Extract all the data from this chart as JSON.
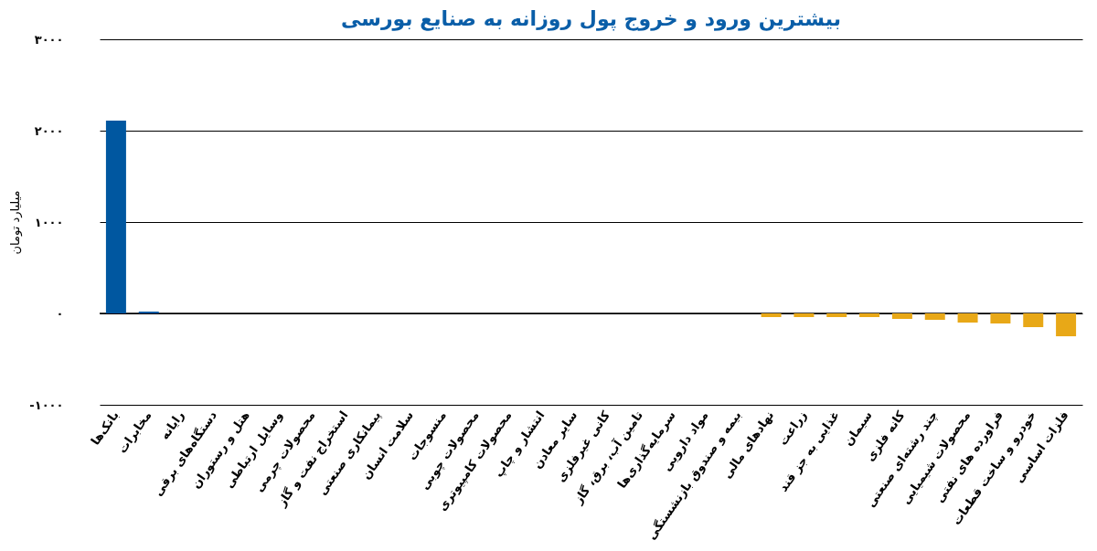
{
  "chart_data": {
    "type": "bar",
    "title": "بیشترین ورود و خروج پول روزانه به صنایع بورسی",
    "ylabel": "میلیارد تومان",
    "categories": [
      "بانک‌ها",
      "مخابرات",
      "رایانه",
      "دستگاه‌های برقی",
      "هتل و رستوران",
      "وسایل ارتباطی",
      "محصولات چرمی",
      "استخراج نفت و گاز",
      "پیمانکاری صنعتی",
      "سلامت انسان",
      "منسوجات",
      "محصولات چوبی",
      "محصولات کامپیوتری",
      "انتشار و چاپ",
      "سایر معادن",
      "کانی غیرفلزی",
      "تامین آب، برق، گاز",
      "سرمایه‌گذاری‌ها",
      "مواد دارویی",
      "بیمه و صندوق بازنشستگی",
      "نهادهای مالی",
      "زراعت",
      "غذایی به جز قند",
      "سیمان",
      "کانه فلزی",
      "چند رشته‌ای صنعتی",
      "محصولات شیمیایی",
      "فراورده های نفتی",
      "خودرو و ساخت قطعات",
      "فلزات اساسی"
    ],
    "values": [
      2110,
      20,
      0,
      0,
      0,
      0,
      0,
      0,
      0,
      0,
      0,
      0,
      0,
      0,
      0,
      0,
      0,
      0,
      0,
      0,
      -40,
      -40,
      -40,
      -40,
      -60,
      -70,
      -100,
      -110,
      -150,
      -250
    ],
    "colors": [
      "#0057a0",
      "#0057a0",
      "#0057a0",
      "#0057a0",
      "#0057a0",
      "#0057a0",
      "#0057a0",
      "#0057a0",
      "#0057a0",
      "#0057a0",
      "#0057a0",
      "#0057a0",
      "#0057a0",
      "#0057a0",
      "#0057a0",
      "#0057a0",
      "#0057a0",
      "#0057a0",
      "#0057a0",
      "#0057a0",
      "#e8a817",
      "#e8a817",
      "#e8a817",
      "#e8a817",
      "#e8a817",
      "#e8a817",
      "#e8a817",
      "#e8a817",
      "#e8a817",
      "#e8a817"
    ],
    "ylim": [
      -1000,
      3000
    ],
    "yticks": [
      {
        "value": -1000,
        "label": "-۱۰۰۰"
      },
      {
        "value": 0,
        "label": "۰"
      },
      {
        "value": 1000,
        "label": "۱۰۰۰"
      },
      {
        "value": 2000,
        "label": "۲۰۰۰"
      },
      {
        "value": 3000,
        "label": "۳۰۰۰"
      }
    ],
    "grid": "y"
  }
}
